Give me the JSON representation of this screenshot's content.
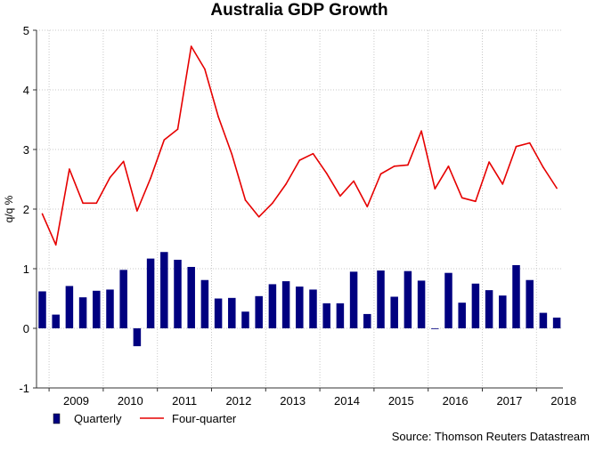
{
  "chart_data": {
    "type": "bar+line",
    "title": "Australia GDP Growth",
    "ylabel": "q/q %",
    "xlabel": "",
    "ylim": [
      -1,
      5
    ],
    "yticks": [
      -1,
      0,
      1,
      2,
      3,
      4,
      5
    ],
    "year_labels": [
      "2009",
      "2010",
      "2011",
      "2012",
      "2013",
      "2014",
      "2015",
      "2016",
      "2017",
      "2018"
    ],
    "first_quarter": "2008 Q4",
    "series": [
      {
        "name": "Quarterly",
        "type": "bar",
        "color": "#000080",
        "values": [
          0.62,
          0.23,
          0.71,
          0.52,
          0.63,
          0.65,
          0.98,
          -0.3,
          1.17,
          1.28,
          1.15,
          1.03,
          0.81,
          0.5,
          0.51,
          0.28,
          0.54,
          0.74,
          0.79,
          0.7,
          0.65,
          0.42,
          0.42,
          0.95,
          0.24,
          0.97,
          0.53,
          0.96,
          0.8,
          -0.01,
          0.93,
          0.43,
          0.75,
          0.64,
          0.55,
          1.06,
          0.81,
          0.26,
          0.18
        ]
      },
      {
        "name": "Four-quarter",
        "type": "line",
        "color": "#e60000",
        "values": [
          1.92,
          1.4,
          2.67,
          2.1,
          2.1,
          2.53,
          2.8,
          1.97,
          2.52,
          3.16,
          3.34,
          4.73,
          4.35,
          3.55,
          2.92,
          2.15,
          1.87,
          2.1,
          2.42,
          2.82,
          2.93,
          2.6,
          2.22,
          2.47,
          2.04,
          2.59,
          2.72,
          2.74,
          3.31,
          2.34,
          2.72,
          2.19,
          2.13,
          2.79,
          2.42,
          3.05,
          3.11,
          2.7,
          2.35
        ]
      }
    ],
    "legend": [
      "Quarterly",
      "Four-quarter"
    ],
    "legend_position": "bottom-left",
    "grid": true,
    "source": "Source: Thomson Reuters Datastream"
  }
}
